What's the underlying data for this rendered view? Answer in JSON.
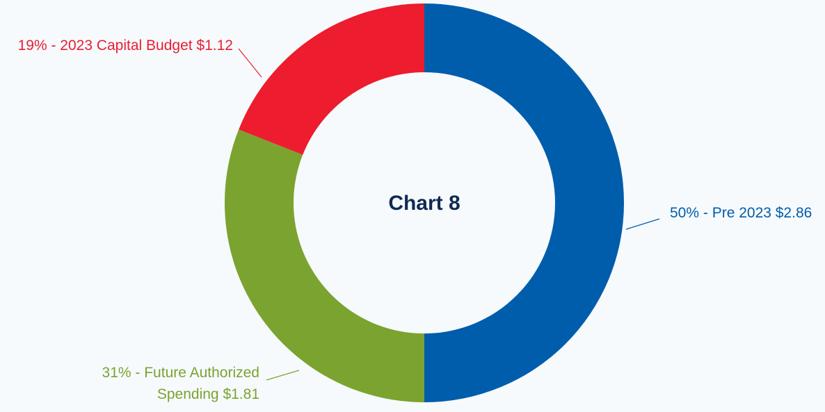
{
  "chart_data": {
    "type": "donut",
    "title": "Chart 8",
    "values": [
      50,
      31,
      19
    ],
    "value_labels": [
      [
        "50% - Pre 2023 $2.86"
      ],
      [
        "31% - Future Authorized",
        "Spending $1.81"
      ],
      [
        "19% - 2023 Capital Budget $1.12"
      ]
    ],
    "colors": [
      "#005dab",
      "#7ba32f",
      "#ed1c2e"
    ]
  }
}
